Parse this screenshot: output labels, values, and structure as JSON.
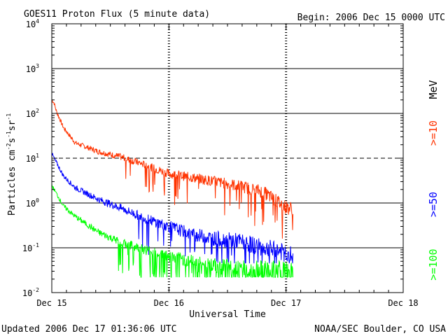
{
  "header": {
    "title": "GOES11 Proton Flux (5 minute data)",
    "begin": "Begin: 2006 Dec 15 0000 UTC"
  },
  "footer": {
    "updated": "Updated 2006 Dec 17 01:36:06 UTC",
    "credit": "NOAA/SEC Boulder, CO USA"
  },
  "chart_data": {
    "type": "line",
    "title": "GOES11 Proton Flux (5 minute data)",
    "xlabel": "Universal Time",
    "ylabel": "Particles cm-2s-1sr-1",
    "yscale": "log",
    "ylim": [
      0.01,
      10000
    ],
    "xlim": [
      0,
      3
    ],
    "x_unit": "days since 2006 Dec 15 0000 UTC",
    "x_ticks": [
      0,
      1,
      2,
      3
    ],
    "x_tick_labels": [
      "Dec 15",
      "Dec 16",
      "Dec 17",
      "Dec 18"
    ],
    "y_ticks": [
      0.01,
      0.1,
      1,
      10,
      100,
      1000,
      10000
    ],
    "y_tick_labels": [
      {
        "base": "10",
        "exp": "-2"
      },
      {
        "base": "10",
        "exp": "-1"
      },
      {
        "base": "10",
        "exp": "0"
      },
      {
        "base": "10",
        "exp": "1"
      },
      {
        "base": "10",
        "exp": "2"
      },
      {
        "base": "10",
        "exp": "3"
      },
      {
        "base": "10",
        "exp": "4"
      }
    ],
    "gridlines": [
      {
        "value": 0.1,
        "style": "solid"
      },
      {
        "value": 1,
        "style": "solid"
      },
      {
        "value": 10,
        "style": "dashed"
      },
      {
        "value": 100,
        "style": "solid"
      },
      {
        "value": 1000,
        "style": "solid"
      }
    ],
    "ylabel_parts": [
      "Particles cm",
      "-2",
      "s",
      "-1",
      "sr",
      "-1"
    ],
    "legend_unit": "MeV",
    "series": [
      {
        "name": ">=10",
        "color": "#ff3300",
        "x": [
          0,
          0.02,
          0.04,
          0.1,
          0.2,
          0.4,
          0.6,
          0.8,
          1.0,
          1.2,
          1.4,
          1.6,
          1.8,
          1.9,
          2.0,
          2.06
        ],
        "y": [
          200,
          170,
          110,
          48,
          22,
          14,
          10.5,
          7,
          4.5,
          3.7,
          3.0,
          2.4,
          1.8,
          1.2,
          0.8,
          0.75
        ]
      },
      {
        "name": ">=50",
        "color": "#0000ff",
        "x": [
          0,
          0.02,
          0.1,
          0.2,
          0.4,
          0.6,
          0.8,
          1.0,
          1.2,
          1.4,
          1.6,
          1.8,
          2.0,
          2.06
        ],
        "y": [
          13,
          10,
          4,
          2.2,
          1.2,
          0.75,
          0.45,
          0.3,
          0.2,
          0.16,
          0.14,
          0.1,
          0.08,
          0.06
        ]
      },
      {
        "name": ">=100",
        "color": "#00ff00",
        "x": [
          0,
          0.02,
          0.1,
          0.2,
          0.4,
          0.6,
          0.8,
          1.0,
          1.2,
          1.4,
          1.6,
          1.8,
          2.0,
          2.06
        ],
        "y": [
          2.5,
          2,
          0.85,
          0.5,
          0.22,
          0.13,
          0.09,
          0.065,
          0.05,
          0.04,
          0.035,
          0.033,
          0.03,
          0.03
        ]
      }
    ]
  }
}
